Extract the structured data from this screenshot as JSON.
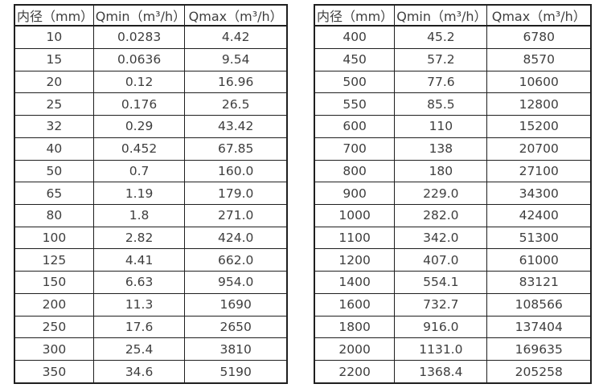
{
  "page": {
    "background": "#ffffff",
    "text_color": "#3e3e3e",
    "border_color": "#1f1f1f"
  },
  "tables": [
    {
      "name": "flow-spec-small-diameters",
      "headers": [
        "内径（mm）",
        "Qmin（m³/h）",
        "Qmax（m³/h）"
      ],
      "rows": [
        [
          "10",
          "0.0283",
          "4.42"
        ],
        [
          "15",
          "0.0636",
          "9.54"
        ],
        [
          "20",
          "0.12",
          "16.96"
        ],
        [
          "25",
          "0.176",
          "26.5"
        ],
        [
          "32",
          "0.29",
          "43.42"
        ],
        [
          "40",
          "0.452",
          "67.85"
        ],
        [
          "50",
          "0.7",
          "160.0"
        ],
        [
          "65",
          "1.19",
          "179.0"
        ],
        [
          "80",
          "1.8",
          "271.0"
        ],
        [
          "100",
          "2.82",
          "424.0"
        ],
        [
          "125",
          "4.41",
          "662.0"
        ],
        [
          "150",
          "6.63",
          "954.0"
        ],
        [
          "200",
          "11.3",
          "1690"
        ],
        [
          "250",
          "17.6",
          "2650"
        ],
        [
          "300",
          "25.4",
          "3810"
        ],
        [
          "350",
          "34.6",
          "5190"
        ]
      ]
    },
    {
      "name": "flow-spec-large-diameters",
      "headers": [
        "内径（mm）",
        "Qmin（m³/h）",
        "Qmax（m³/h）"
      ],
      "rows": [
        [
          "400",
          "45.2",
          "6780"
        ],
        [
          "450",
          "57.2",
          "8570"
        ],
        [
          "500",
          "77.6",
          "10600"
        ],
        [
          "550",
          "85.5",
          "12800"
        ],
        [
          "600",
          "110",
          "15200"
        ],
        [
          "700",
          "138",
          "20700"
        ],
        [
          "800",
          "180",
          "27100"
        ],
        [
          "900",
          "229.0",
          "34300"
        ],
        [
          "1000",
          "282.0",
          "42400"
        ],
        [
          "1100",
          "342.0",
          "51300"
        ],
        [
          "1200",
          "407.0",
          "61000"
        ],
        [
          "1400",
          "554.1",
          "83121"
        ],
        [
          "1600",
          "732.7",
          "108566"
        ],
        [
          "1800",
          "916.0",
          "137404"
        ],
        [
          "2000",
          "1131.0",
          "169635"
        ],
        [
          "2200",
          "1368.4",
          "205258"
        ]
      ]
    }
  ]
}
